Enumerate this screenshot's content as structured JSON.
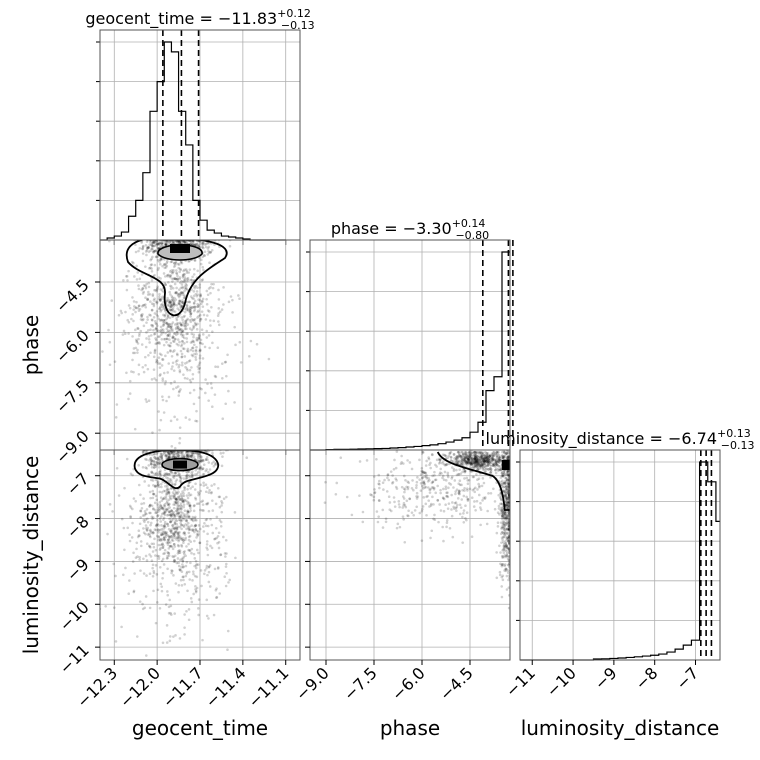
{
  "chart_data": {
    "type": "corner",
    "parameters": [
      "geocent_time",
      "phase",
      "luminosity_distance"
    ],
    "titles": [
      {
        "name": "geocent_time",
        "median": "−11.83",
        "plus": "+0.12",
        "minus": "−0.13"
      },
      {
        "name": "phase",
        "median": "−3.30",
        "plus": "+0.14",
        "minus": "−0.80"
      },
      {
        "name": "luminosity_distance",
        "median": "−6.74",
        "plus": "+0.13",
        "minus": "−0.13"
      }
    ],
    "xlabels": [
      "geocent_time",
      "phase",
      "luminosity_distance"
    ],
    "ylabels": [
      "",
      "phase",
      "luminosity_distance"
    ],
    "ranges": [
      [
        -12.4,
        -11.0
      ],
      [
        -9.5,
        -3.25
      ],
      [
        -11.3,
        -6.4
      ]
    ],
    "ticks": [
      {
        "values": [
          -12.3,
          -12.0,
          -11.7,
          -11.4,
          -11.1
        ],
        "labels": [
          "−12.3",
          "−12.0",
          "−11.7",
          "−11.4",
          "−11.1"
        ]
      },
      {
        "values": [
          -9.0,
          -7.5,
          -6.0,
          -4.5
        ],
        "labels": [
          "−9.0",
          "−7.5",
          "−6.0",
          "−4.5"
        ]
      },
      {
        "values": [
          -11,
          -10,
          -9,
          -8,
          -7
        ],
        "labels": [
          "−11",
          "−10",
          "−9",
          "−8",
          "−7"
        ]
      }
    ],
    "quantiles": [
      [
        -11.96,
        -11.83,
        -11.71
      ],
      [
        -4.1,
        -3.3,
        -3.16
      ],
      [
        -6.87,
        -6.74,
        -6.61
      ]
    ],
    "histograms": [
      {
        "edges": [
          -12.4,
          -12.35,
          -12.3,
          -12.25,
          -12.2,
          -12.15,
          -12.1,
          -12.05,
          -12.0,
          -11.95,
          -11.9,
          -11.85,
          -11.8,
          -11.75,
          -11.7,
          -11.65,
          -11.6,
          -11.55,
          -11.5,
          -11.45,
          -11.4,
          -11.35,
          -11.3,
          -11.25,
          -11.2,
          -11.15,
          -11.1
        ],
        "counts": [
          0,
          0.01,
          0.02,
          0.04,
          0.12,
          0.2,
          0.34,
          0.65,
          0.8,
          1.0,
          0.95,
          0.65,
          0.48,
          0.2,
          0.1,
          0.05,
          0.035,
          0.02,
          0.015,
          0.01,
          0.005,
          0,
          0,
          0,
          0,
          0
        ]
      },
      {
        "edges": [
          -9.5,
          -9.25,
          -9.0,
          -8.75,
          -8.5,
          -8.25,
          -8.0,
          -7.75,
          -7.5,
          -7.25,
          -7.0,
          -6.75,
          -6.5,
          -6.25,
          -6.0,
          -5.75,
          -5.5,
          -5.25,
          -5.0,
          -4.75,
          -4.5,
          -4.25,
          -4.0,
          -3.75,
          -3.5,
          -3.25
        ],
        "counts": [
          0,
          0,
          0.002,
          0.003,
          0.003,
          0.004,
          0.005,
          0.006,
          0.007,
          0.008,
          0.01,
          0.012,
          0.015,
          0.018,
          0.022,
          0.026,
          0.032,
          0.04,
          0.05,
          0.062,
          0.09,
          0.14,
          0.3,
          0.37,
          1.0
        ]
      },
      {
        "edges": [
          -11.3,
          -11.1,
          -10.9,
          -10.7,
          -10.5,
          -10.3,
          -10.1,
          -9.9,
          -9.7,
          -9.5,
          -9.3,
          -9.1,
          -8.9,
          -8.7,
          -8.5,
          -8.3,
          -8.1,
          -7.9,
          -7.7,
          -7.5,
          -7.3,
          -7.1,
          -6.9,
          -6.7,
          -6.5,
          -6.4
        ],
        "counts": [
          0,
          0,
          0,
          0,
          0,
          0,
          0,
          0,
          0,
          0.005,
          0.006,
          0.008,
          0.01,
          0.013,
          0.016,
          0.02,
          0.024,
          0.03,
          0.04,
          0.055,
          0.075,
          0.1,
          1.0,
          0.9,
          0.7
        ]
      }
    ],
    "density_2d": [
      {
        "x": 1,
        "y": 0,
        "center": [
          -11.84,
          -3.3
        ],
        "spread": [
          0.1,
          0.5
        ],
        "note_cluster": "top"
      },
      {
        "x": 2,
        "y": 0,
        "center": [
          -11.83,
          -6.74
        ],
        "spread": [
          0.08,
          0.6
        ]
      },
      {
        "x": 2,
        "y": 1,
        "center": [
          -3.3,
          -6.74
        ],
        "spread": [
          0.9,
          0.6
        ]
      }
    ],
    "grid": true
  }
}
